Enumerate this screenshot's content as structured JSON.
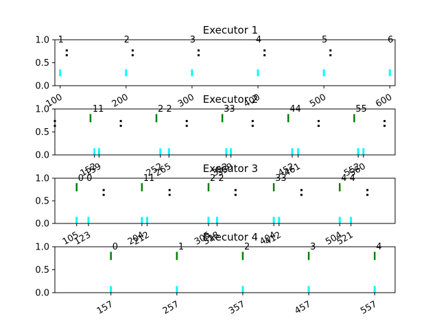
{
  "colors": {
    "marker": "#00ffff",
    "bar": "#008000",
    "dot": "#000000",
    "frame": "#000000"
  },
  "chart_data": [
    {
      "type": "scatter",
      "title": "Executor 1",
      "xlim": [
        92,
        608
      ],
      "ylim": [
        0,
        1.0
      ],
      "yticks": [
        "0.0",
        "0.5",
        "1.0"
      ],
      "xticks": [
        100,
        200,
        300,
        400,
        500,
        600
      ],
      "xtick_labels": [
        "100",
        "200",
        "300",
        "400",
        "500",
        "600"
      ],
      "markers": [
        100,
        200,
        300,
        400,
        500,
        600
      ],
      "markers_y": 0.28,
      "dots": [
        110,
        210,
        310,
        410,
        510
      ],
      "dots_y": 0.7,
      "bars": [],
      "annotations": [
        {
          "x": 100,
          "text": "1"
        },
        {
          "x": 200,
          "text": "2"
        },
        {
          "x": 300,
          "text": "3"
        },
        {
          "x": 400,
          "text": "4"
        },
        {
          "x": 500,
          "text": "5"
        },
        {
          "x": 600,
          "text": "6"
        }
      ]
    },
    {
      "type": "scatter",
      "title": "Executor 2",
      "xlim": [
        92,
        608
      ],
      "ylim": [
        0,
        1.0
      ],
      "yticks": [
        "0.0",
        "0.5",
        "1.0"
      ],
      "xticks": [
        152,
        159,
        252,
        265,
        352,
        359,
        452,
        461,
        552,
        560
      ],
      "xtick_labels": [
        "152",
        "159",
        "252",
        "265",
        "352",
        "359",
        "452",
        "461",
        "552",
        "560"
      ],
      "markers": [
        152,
        159,
        252,
        265,
        352,
        359,
        452,
        461,
        552,
        560
      ],
      "markers_y": 0.07,
      "dots": [
        92,
        192,
        292,
        392,
        492,
        592
      ],
      "dots_y": 0.67,
      "bars": [
        146,
        246,
        346,
        446,
        546
      ],
      "annotations": [
        {
          "x": 147,
          "text": "11"
        },
        {
          "x": 246,
          "text": "2 2"
        },
        {
          "x": 346,
          "text": "33"
        },
        {
          "x": 446,
          "text": "44"
        },
        {
          "x": 546,
          "text": "55"
        }
      ]
    },
    {
      "type": "scatter",
      "title": "Executor 3",
      "xlim": [
        72,
        588
      ],
      "ylim": [
        0,
        1.0
      ],
      "yticks": [
        "0.0",
        "0.5",
        "1.0"
      ],
      "xticks": [
        105,
        123,
        204,
        212,
        305,
        318,
        404,
        412,
        504,
        521
      ],
      "xtick_labels": [
        "105",
        "123",
        "204",
        "212",
        "305",
        "318",
        "404",
        "412",
        "504",
        "521"
      ],
      "markers": [
        105,
        123,
        204,
        212,
        305,
        318,
        404,
        412,
        504,
        521
      ],
      "markers_y": 0.07,
      "dots": [
        146,
        246,
        346,
        446,
        546
      ],
      "dots_y": 0.67,
      "bars": [
        105,
        204,
        305,
        404,
        504
      ],
      "annotations": [
        {
          "x": 105,
          "text": "0  0"
        },
        {
          "x": 204,
          "text": "11"
        },
        {
          "x": 305,
          "text": "2 2"
        },
        {
          "x": 404,
          "text": "33"
        },
        {
          "x": 504,
          "text": "4  4"
        }
      ]
    },
    {
      "type": "scatter",
      "title": "Executor 4",
      "xlim": [
        72,
        588
      ],
      "ylim": [
        0,
        1.0
      ],
      "yticks": [
        "0.0",
        "0.5",
        "1.0"
      ],
      "xticks": [
        157,
        257,
        357,
        457,
        557
      ],
      "xtick_labels": [
        "157",
        "257",
        "357",
        "457",
        "557"
      ],
      "markers": [
        157,
        257,
        357,
        457,
        557
      ],
      "markers_y": 0.07,
      "dots": [],
      "dots_y": 0.67,
      "bars": [
        157,
        257,
        357,
        457,
        557
      ],
      "annotations": [
        {
          "x": 157,
          "text": "0"
        },
        {
          "x": 257,
          "text": "1"
        },
        {
          "x": 357,
          "text": "2"
        },
        {
          "x": 457,
          "text": "3"
        },
        {
          "x": 557,
          "text": "4"
        }
      ]
    }
  ]
}
